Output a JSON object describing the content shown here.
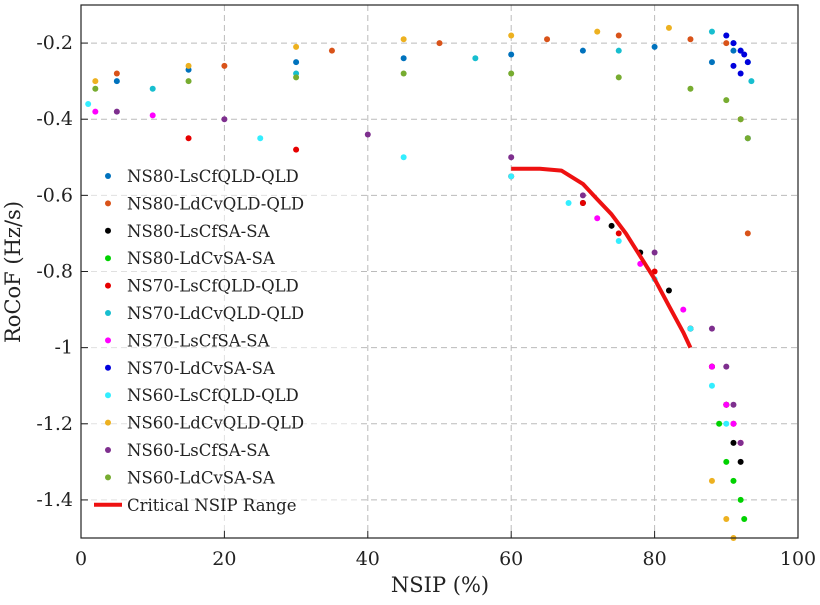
{
  "chart_data": {
    "type": "scatter",
    "title": "",
    "xlabel": "NSIP (%)",
    "ylabel": "RoCoF (Hz/s)",
    "xlim": [
      0,
      100
    ],
    "ylim": [
      -1.5,
      -0.1
    ],
    "x_ticks": [
      0,
      20,
      40,
      60,
      80,
      100
    ],
    "x_tick_labels": [
      "0",
      "20",
      "40",
      "60",
      "80",
      "100"
    ],
    "y_ticks": [
      -0.2,
      -0.4,
      -0.6,
      -0.8,
      -1,
      -1.2,
      -1.4
    ],
    "y_tick_labels": [
      "-0.2",
      "-0.4",
      "-0.6",
      "-0.8",
      "-1",
      "-1.2",
      "-1.4"
    ],
    "grid": true,
    "legend_position": "left",
    "series": [
      {
        "name": "NS80-LsCfQLD-QLD",
        "color": "#0072BD",
        "marker": "dot",
        "x": [
          5,
          15,
          30,
          45,
          60,
          70,
          80,
          88,
          91,
          93
        ],
        "y": [
          -0.3,
          -0.27,
          -0.25,
          -0.24,
          -0.23,
          -0.22,
          -0.21,
          -0.25,
          -0.22,
          -0.45
        ]
      },
      {
        "name": "NS80-LdCvQLD-QLD",
        "color": "#D95319",
        "marker": "dot",
        "x": [
          5,
          20,
          35,
          50,
          65,
          75,
          85,
          90,
          92,
          93
        ],
        "y": [
          -0.28,
          -0.26,
          -0.22,
          -0.2,
          -0.19,
          -0.18,
          -0.19,
          -0.2,
          -0.4,
          -0.7
        ]
      },
      {
        "name": "NS80-LsCfSA-SA",
        "color": "#000000",
        "marker": "dot",
        "x": [
          70,
          74,
          78,
          82,
          85,
          88,
          90,
          91,
          92
        ],
        "y": [
          -0.62,
          -0.68,
          -0.75,
          -0.85,
          -0.95,
          -1.05,
          -1.15,
          -1.25,
          -1.3
        ]
      },
      {
        "name": "NS80-LdCvSA-SA",
        "color": "#00D200",
        "marker": "dot",
        "x": [
          89,
          90,
          91,
          92,
          92.5
        ],
        "y": [
          -1.2,
          -1.3,
          -1.35,
          -1.4,
          -1.45
        ]
      },
      {
        "name": "NS70-LsCfQLD-QLD",
        "color": "#E60000",
        "marker": "dot",
        "x": [
          15,
          30,
          60,
          70,
          75,
          80,
          85,
          88,
          90,
          91,
          92
        ],
        "y": [
          -0.45,
          -0.48,
          -0.55,
          -0.62,
          -0.7,
          -0.8,
          -0.95,
          -1.05,
          -1.15,
          -1.2,
          -1.25
        ]
      },
      {
        "name": "NS70-LdCvQLD-QLD",
        "color": "#17BECF",
        "marker": "dot",
        "x": [
          10,
          30,
          55,
          75,
          88,
          90,
          91,
          92,
          93,
          93.5
        ],
        "y": [
          -0.32,
          -0.28,
          -0.24,
          -0.22,
          -0.17,
          -0.18,
          -0.2,
          -0.22,
          -0.25,
          -0.3
        ]
      },
      {
        "name": "NS70-LsCfSA-SA",
        "color": "#FF00FF",
        "marker": "dot",
        "x": [
          2,
          10,
          72,
          78,
          84,
          88,
          90,
          91,
          92
        ],
        "y": [
          -0.38,
          -0.39,
          -0.66,
          -0.78,
          -0.9,
          -1.05,
          -1.15,
          -1.2,
          -1.25
        ]
      },
      {
        "name": "NS70-LdCvSA-SA",
        "color": "#0000DD",
        "marker": "dot",
        "x": [
          90,
          91,
          92,
          92.5,
          93,
          92,
          91
        ],
        "y": [
          -0.18,
          -0.2,
          -0.22,
          -0.23,
          -0.25,
          -0.28,
          -0.26
        ]
      },
      {
        "name": "NS60-LsCfQLD-QLD",
        "color": "#33EEFF",
        "marker": "dot",
        "x": [
          1,
          25,
          45,
          60,
          68,
          75,
          80,
          85,
          88,
          90
        ],
        "y": [
          -0.36,
          -0.45,
          -0.5,
          -0.55,
          -0.62,
          -0.72,
          -0.82,
          -0.95,
          -1.1,
          -1.2
        ]
      },
      {
        "name": "NS60-LdCvQLD-QLD",
        "color": "#EDB120",
        "marker": "dot",
        "x": [
          2,
          15,
          30,
          45,
          60,
          72,
          82,
          88,
          90,
          91
        ],
        "y": [
          -0.3,
          -0.26,
          -0.21,
          -0.19,
          -0.18,
          -0.17,
          -0.16,
          -1.35,
          -1.45,
          -1.5
        ]
      },
      {
        "name": "NS60-LsCfSA-SA",
        "color": "#7E2F8E",
        "marker": "dot",
        "x": [
          5,
          20,
          40,
          60,
          70,
          80,
          88,
          90,
          91,
          92
        ],
        "y": [
          -0.38,
          -0.4,
          -0.44,
          -0.5,
          -0.6,
          -0.75,
          -0.95,
          -1.05,
          -1.15,
          -1.25
        ]
      },
      {
        "name": "NS60-LdCvSA-SA",
        "color": "#77AC30",
        "marker": "dot",
        "x": [
          2,
          15,
          30,
          45,
          60,
          75,
          85,
          90,
          92,
          93
        ],
        "y": [
          -0.32,
          -0.3,
          -0.29,
          -0.28,
          -0.28,
          -0.29,
          -0.32,
          -0.35,
          -0.4,
          -0.45
        ]
      },
      {
        "name": "Critical NSIP Range",
        "color": "#EE1111",
        "marker": "line",
        "x": [
          60,
          64,
          67,
          70,
          72,
          74,
          76,
          78,
          80,
          82,
          84,
          85
        ],
        "y": [
          -0.53,
          -0.53,
          -0.535,
          -0.57,
          -0.61,
          -0.65,
          -0.7,
          -0.76,
          -0.82,
          -0.89,
          -0.96,
          -1.0
        ]
      }
    ]
  }
}
